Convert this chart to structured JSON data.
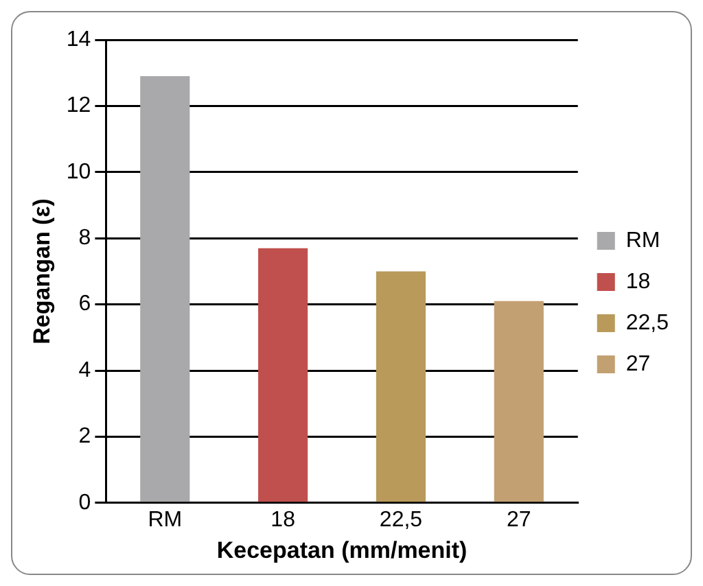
{
  "chart_data": {
    "type": "bar",
    "xlabel": "Kecepatan (mm/menit)",
    "ylabel": "Regangan (ε)",
    "categories": [
      "RM",
      "18",
      "22,5",
      "27"
    ],
    "series": [
      {
        "name": "RM",
        "color": "#a9a9ab",
        "values": [
          12.9,
          null,
          null,
          null
        ]
      },
      {
        "name": "18",
        "color": "#c0504d",
        "values": [
          null,
          7.7,
          null,
          null
        ]
      },
      {
        "name": "22,5",
        "color": "#b99a5a",
        "values": [
          null,
          null,
          7.0,
          null
        ]
      },
      {
        "name": "27",
        "color": "#c3a072",
        "values": [
          null,
          null,
          null,
          6.1
        ]
      }
    ],
    "ylim": [
      0,
      14
    ],
    "yticks": [
      0,
      2,
      4,
      6,
      8,
      10,
      12,
      14
    ],
    "grid": "y",
    "legend": "right"
  }
}
